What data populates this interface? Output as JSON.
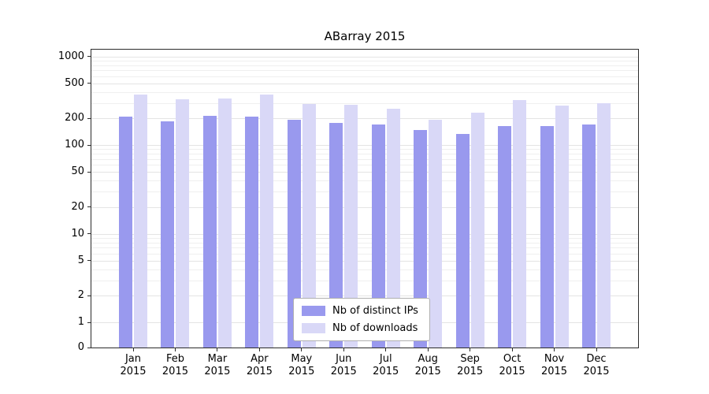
{
  "chart_data": {
    "type": "bar",
    "title": "ABarray 2015",
    "categories": [
      "Jan",
      "Feb",
      "Mar",
      "Apr",
      "May",
      "Jun",
      "Jul",
      "Aug",
      "Sep",
      "Oct",
      "Nov",
      "Dec"
    ],
    "year": "2015",
    "series": [
      {
        "name": "Nb of distinct IPs",
        "color": "#9999ee",
        "values": [
          210,
          185,
          215,
          210,
          195,
          180,
          172,
          148,
          135,
          165,
          165,
          172
        ]
      },
      {
        "name": "Nb of downloads",
        "color": "#d9d8f7",
        "values": [
          370,
          330,
          335,
          375,
          290,
          285,
          260,
          195,
          232,
          325,
          280,
          300
        ]
      }
    ],
    "yscale": "log",
    "yticks": [
      0,
      1,
      2,
      5,
      10,
      20,
      50,
      100,
      200,
      500,
      1000
    ],
    "ylim": [
      0,
      1200
    ],
    "grid": true,
    "legend_position": "lower center"
  }
}
